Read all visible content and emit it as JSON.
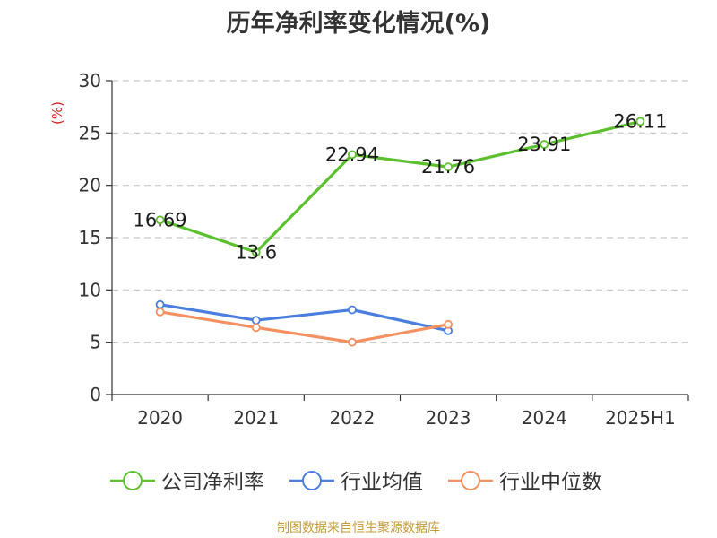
{
  "title": "历年净利率变化情况(%)",
  "source_note": "制图数据来自恒生聚源数据库",
  "chart_data": {
    "type": "line",
    "categories": [
      "2020",
      "2021",
      "2022",
      "2023",
      "2024",
      "2025H1"
    ],
    "ylabel": "(%)",
    "ylim": [
      0,
      30
    ],
    "yticks": [
      0,
      5,
      10,
      15,
      20,
      25,
      30
    ],
    "grid": true,
    "legend_position": "bottom",
    "series": [
      {
        "name": "公司净利率",
        "color": "#5cc12e",
        "values": [
          16.69,
          13.6,
          22.94,
          21.76,
          23.91,
          26.11
        ],
        "data_labels": [
          "16.69",
          "13.6",
          "22.94",
          "21.76",
          "23.91",
          "26.11"
        ]
      },
      {
        "name": "行业均值",
        "color": "#4a7fe0",
        "values": [
          8.6,
          7.1,
          8.1,
          6.1,
          null,
          null
        ]
      },
      {
        "name": "行业中位数",
        "color": "#f59060",
        "values": [
          7.9,
          6.4,
          5.0,
          6.7,
          null,
          null
        ]
      }
    ]
  }
}
